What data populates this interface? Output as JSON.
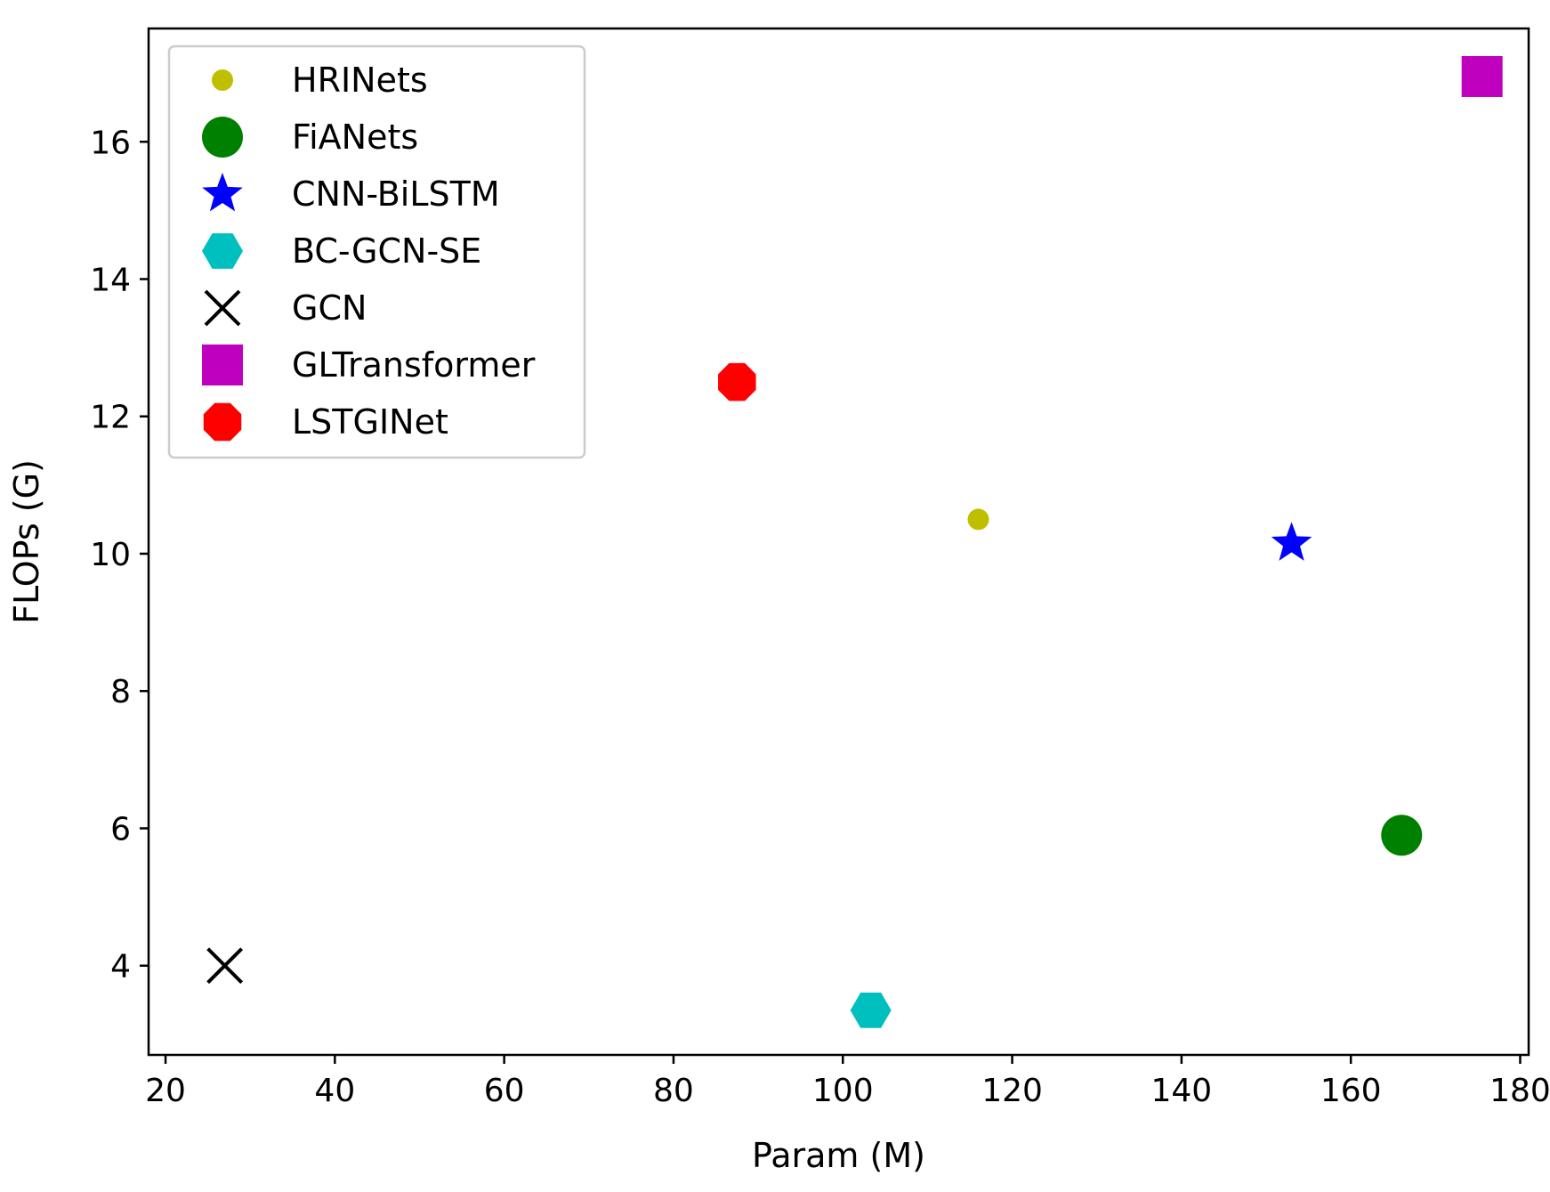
{
  "chart_data": {
    "type": "scatter",
    "title": "",
    "xlabel": "Param (M)",
    "ylabel": "FLOPs (G)",
    "xlim": [
      18,
      181
    ],
    "ylim": [
      2.7,
      17.65
    ],
    "xticks": [
      20,
      40,
      60,
      80,
      100,
      120,
      140,
      160,
      180
    ],
    "yticks": [
      4,
      6,
      8,
      10,
      12,
      14,
      16
    ],
    "grid": false,
    "legend_position": "top-left",
    "series": [
      {
        "name": "HRINets",
        "marker": "circle-small",
        "color": "#bfbf00",
        "x": 116,
        "y": 10.5
      },
      {
        "name": "FiANets",
        "marker": "circle-large",
        "color": "#008000",
        "x": 166,
        "y": 5.9
      },
      {
        "name": "CNN-BiLSTM",
        "marker": "star",
        "color": "#0000ff",
        "x": 153,
        "y": 10.15
      },
      {
        "name": "BC-GCN-SE",
        "marker": "hexagon",
        "color": "#00bfbf",
        "x": 103.3,
        "y": 3.35
      },
      {
        "name": "GCN",
        "marker": "x",
        "color": "#000000",
        "x": 27,
        "y": 4.0
      },
      {
        "name": "GLTransformer",
        "marker": "square",
        "color": "#bf00bf",
        "x": 175.5,
        "y": 16.95
      },
      {
        "name": "LSTGINet",
        "marker": "octagon",
        "color": "#ff0000",
        "x": 87.5,
        "y": 12.5
      }
    ]
  }
}
